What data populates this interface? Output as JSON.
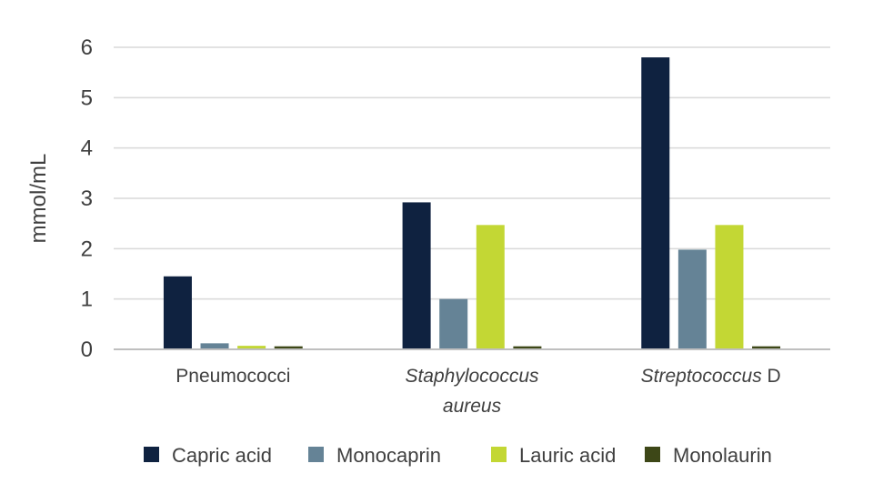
{
  "chart_data": {
    "type": "bar",
    "title": "",
    "xlabel": "",
    "ylabel": "mmol/mL",
    "ylim": [
      0,
      6
    ],
    "yticks": [
      0,
      1,
      2,
      3,
      4,
      5,
      6
    ],
    "grid": true,
    "legend_position": "bottom",
    "categories": [
      {
        "parts": [
          {
            "text": "Pneumococci",
            "italic": false
          }
        ]
      },
      {
        "parts": [
          {
            "text": "Staphylococcus",
            "italic": true
          },
          {
            "text": "aureus",
            "italic": true
          }
        ],
        "multiline": true
      },
      {
        "parts": [
          {
            "text": "Streptococcus",
            "italic": true
          },
          {
            "text": " D",
            "italic": false
          }
        ]
      }
    ],
    "series": [
      {
        "name": "Capric acid",
        "color": "#0f2240",
        "values": [
          1.45,
          2.92,
          5.8
        ]
      },
      {
        "name": "Monocaprin",
        "color": "#658396",
        "values": [
          0.12,
          1.0,
          1.98
        ]
      },
      {
        "name": "Lauric acid",
        "color": "#c3d734",
        "values": [
          0.07,
          2.47,
          2.47
        ]
      },
      {
        "name": "Monolaurin",
        "color": "#3d4717",
        "values": [
          0.06,
          0.06,
          0.06
        ]
      }
    ]
  }
}
